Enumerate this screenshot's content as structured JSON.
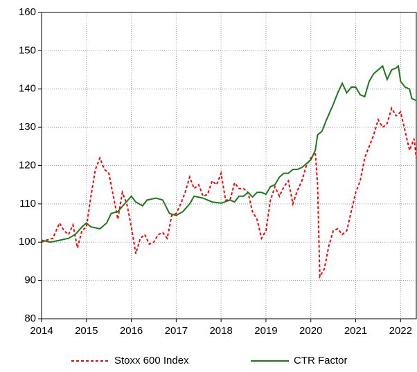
{
  "chart_data": {
    "type": "line",
    "xlim": [
      2014,
      2022.35
    ],
    "xticks": [
      2014,
      2015,
      2016,
      2017,
      2018,
      2019,
      2020,
      2021,
      2022
    ],
    "ylim": [
      80,
      160
    ],
    "yticks": [
      80,
      90,
      100,
      110,
      120,
      130,
      140,
      150,
      160
    ],
    "grid": true,
    "legend": "bottom",
    "series": [
      {
        "name": "Stoxx 600 Index",
        "color": "#ff0000",
        "dash": true,
        "x": [
          2014.0,
          2014.1,
          2014.25,
          2014.4,
          2014.5,
          2014.6,
          2014.7,
          2014.8,
          2014.9,
          2015.0,
          2015.1,
          2015.2,
          2015.3,
          2015.4,
          2015.5,
          2015.6,
          2015.7,
          2015.8,
          2015.9,
          2016.0,
          2016.1,
          2016.2,
          2016.3,
          2016.4,
          2016.5,
          2016.6,
          2016.7,
          2016.8,
          2016.9,
          2017.0,
          2017.1,
          2017.2,
          2017.3,
          2017.4,
          2017.5,
          2017.6,
          2017.7,
          2017.8,
          2017.9,
          2018.0,
          2018.1,
          2018.2,
          2018.3,
          2018.4,
          2018.5,
          2018.6,
          2018.7,
          2018.8,
          2018.9,
          2019.0,
          2019.1,
          2019.2,
          2019.3,
          2019.4,
          2019.5,
          2019.6,
          2019.7,
          2019.8,
          2019.9,
          2020.0,
          2020.1,
          2020.15,
          2020.2,
          2020.3,
          2020.4,
          2020.5,
          2020.6,
          2020.7,
          2020.8,
          2020.9,
          2021.0,
          2021.1,
          2021.2,
          2021.3,
          2021.4,
          2021.5,
          2021.6,
          2021.7,
          2021.8,
          2021.9,
          2022.0,
          2022.1,
          2022.2,
          2022.3,
          2022.35
        ],
        "values": [
          100,
          100.5,
          101,
          105,
          103,
          102,
          104.5,
          98.5,
          103,
          104,
          112,
          119,
          122,
          119,
          118,
          112,
          106,
          113,
          110,
          104,
          97,
          101,
          102,
          99.5,
          100,
          102,
          102.5,
          101,
          107,
          107.5,
          110,
          113,
          117,
          114,
          115,
          112,
          112.5,
          116,
          115,
          118,
          111,
          111,
          115.5,
          114,
          114,
          113,
          108,
          106,
          101,
          103,
          111,
          114.5,
          112,
          114.5,
          116,
          110,
          113.5,
          116,
          120,
          122,
          123.5,
          115,
          91,
          93,
          99,
          103,
          103.5,
          102,
          103,
          108,
          113,
          116,
          122,
          125,
          128,
          132,
          130,
          131,
          135,
          133,
          134,
          129,
          124,
          127,
          122
        ]
      },
      {
        "name": "CTR Factor",
        "color": "#1a7a1a",
        "dash": false,
        "x": [
          2014.0,
          2014.2,
          2014.4,
          2014.6,
          2014.75,
          2014.9,
          2015.0,
          2015.1,
          2015.3,
          2015.45,
          2015.55,
          2015.7,
          2015.85,
          2016.0,
          2016.1,
          2016.25,
          2016.35,
          2016.55,
          2016.7,
          2016.85,
          2017.0,
          2017.15,
          2017.3,
          2017.4,
          2017.6,
          2017.8,
          2018.0,
          2018.2,
          2018.3,
          2018.4,
          2018.5,
          2018.6,
          2018.7,
          2018.8,
          2018.9,
          2019.0,
          2019.1,
          2019.2,
          2019.3,
          2019.4,
          2019.5,
          2019.6,
          2019.7,
          2019.8,
          2019.9,
          2020.0,
          2020.1,
          2020.15,
          2020.25,
          2020.35,
          2020.5,
          2020.6,
          2020.7,
          2020.8,
          2020.9,
          2021.0,
          2021.1,
          2021.2,
          2021.3,
          2021.4,
          2021.5,
          2021.6,
          2021.7,
          2021.8,
          2021.9,
          2021.95,
          2022.0,
          2022.1,
          2022.2,
          2022.25,
          2022.35
        ],
        "values": [
          100.5,
          100,
          100.5,
          101,
          102,
          104,
          105,
          104,
          103.5,
          105,
          107.5,
          108,
          110,
          112,
          110.5,
          109.5,
          111,
          111.5,
          111,
          107.5,
          107,
          108,
          110,
          112,
          111.5,
          110.5,
          110.2,
          111,
          110.5,
          112,
          112,
          113,
          111.8,
          113,
          113,
          112.5,
          114.5,
          115,
          117,
          118,
          118,
          119,
          119,
          119.5,
          120.5,
          121.5,
          124,
          128,
          129,
          132,
          136,
          139,
          141.5,
          139,
          140.5,
          140.5,
          138.5,
          138,
          142,
          144,
          145,
          146,
          142.5,
          145,
          145.5,
          146,
          142,
          140.5,
          140,
          137.5,
          137
        ]
      }
    ]
  }
}
